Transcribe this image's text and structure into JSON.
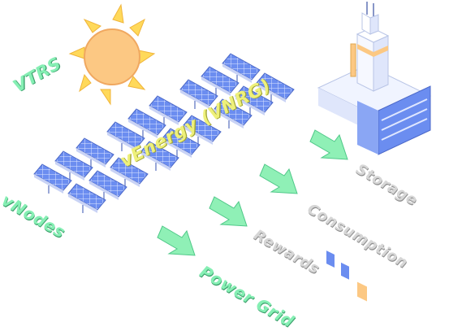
{
  "labels": {
    "vtrs": "VTRS",
    "vnodes": "vNodes",
    "venergy": "vEnergy (VNRG)",
    "storage": "Storage",
    "consumption": "Consumption",
    "rewards": "Rewards",
    "power_grid": "Power Grid"
  },
  "icons": {
    "sun": "sun-icon",
    "solar_panels": "solar-panel-icon",
    "factory": "factory-icon",
    "arrow": "arrow-icon"
  },
  "colors": {
    "green_label": "#86efb4",
    "yellow_label": "#eef07a",
    "grey_label": "#d6d6d6",
    "sun": "#fcc883",
    "sun_rays": "#ffd95a",
    "panel": "#5f82e8",
    "arrow": "#8ff0b6"
  }
}
